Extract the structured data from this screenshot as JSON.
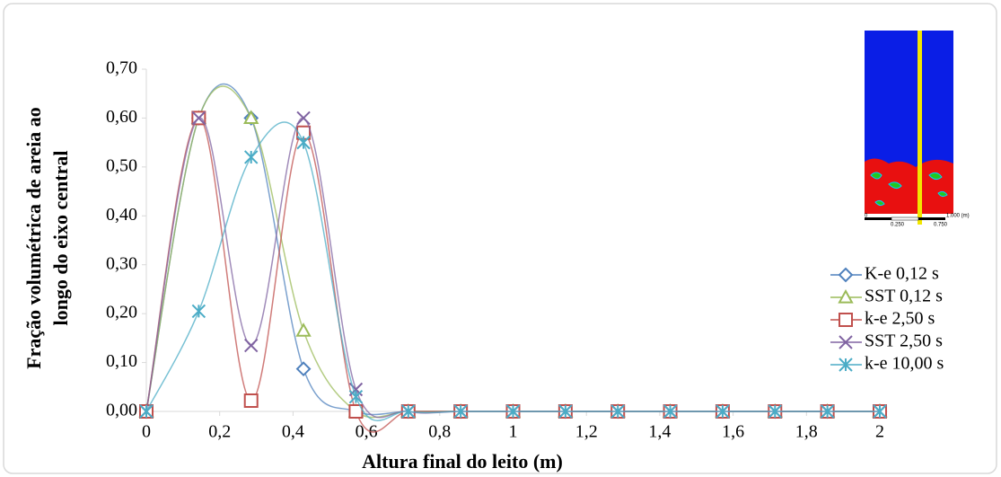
{
  "chart_data": {
    "type": "line",
    "x_label": "Altura final do leito (m)",
    "y_label": [
      "Fração volumétrica de areia ao",
      "longo do eixo central"
    ],
    "x": [
      0,
      0.142857,
      0.285714,
      0.428571,
      0.571429,
      0.714286,
      0.857143,
      1.0,
      1.142857,
      1.285714,
      1.428571,
      1.571429,
      1.714286,
      1.857143,
      2.0
    ],
    "series": [
      {
        "name": "K-e 0,12 s",
        "color": "#4f81bd",
        "marker": "diamond",
        "values": [
          0,
          0.6,
          0.6,
          0.087,
          0,
          0,
          0,
          0,
          0,
          0,
          0,
          0,
          0,
          0,
          0
        ]
      },
      {
        "name": "SST 0,12 s",
        "color": "#9bbb59",
        "marker": "triangle",
        "values": [
          0,
          0.6,
          0.6,
          0.165,
          0,
          0,
          0,
          0,
          0,
          0,
          0,
          0,
          0,
          0,
          0
        ]
      },
      {
        "name": "k-e 2,50 s",
        "color": "#c0504d",
        "marker": "square",
        "values": [
          0,
          0.6,
          0.022,
          0.57,
          0,
          0,
          0,
          0,
          0,
          0,
          0,
          0,
          0,
          0,
          0
        ]
      },
      {
        "name": "SST 2,50 s",
        "color": "#8064a2",
        "marker": "x",
        "values": [
          0,
          0.6,
          0.135,
          0.6,
          0.045,
          0,
          0,
          0,
          0,
          0,
          0,
          0,
          0,
          0,
          0
        ]
      },
      {
        "name": "k-e 10,00 s",
        "color": "#4bacc6",
        "marker": "star",
        "values": [
          0,
          0.205,
          0.52,
          0.55,
          0.03,
          0,
          0,
          0,
          0,
          0,
          0,
          0,
          0,
          0,
          0
        ]
      }
    ],
    "xlim": [
      0,
      2
    ],
    "xticks": [
      0,
      {
        "value": 0.2,
        "label": "0,2"
      },
      {
        "value": 0.4,
        "label": "0,4"
      },
      {
        "value": 0.6,
        "label": "0,6"
      },
      {
        "value": 0.8,
        "label": "0,8"
      },
      1,
      {
        "value": 1.2,
        "label": "1,2"
      },
      {
        "value": 1.4,
        "label": "1,4"
      },
      {
        "value": 1.6,
        "label": "1,6"
      },
      {
        "value": 1.8,
        "label": "1,8"
      },
      2
    ],
    "ylim": [
      0,
      0.7
    ],
    "yticks": [
      {
        "value": 0,
        "label": "0,00"
      },
      {
        "value": 0.1,
        "label": "0,10"
      },
      {
        "value": 0.2,
        "label": "0,20"
      },
      {
        "value": 0.3,
        "label": "0,30"
      },
      {
        "value": 0.4,
        "label": "0,40"
      },
      {
        "value": 0.5,
        "label": "0,50"
      },
      {
        "value": 0.6,
        "label": "0,60"
      },
      {
        "value": 0.7,
        "label": "0,70"
      }
    ],
    "legend": "right",
    "inset_scale_labels": [
      "0",
      "0.250",
      "0.750",
      "1.000 (m)"
    ]
  }
}
